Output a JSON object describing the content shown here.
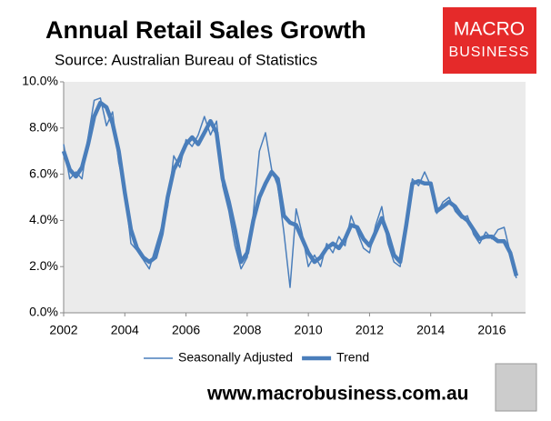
{
  "chart_data": {
    "type": "line",
    "title": "Annual Retail Sales Growth",
    "subtitle": "Source: Australian Bureau of Statistics",
    "logo": [
      "MACRO",
      "BUSINESS"
    ],
    "footer": "www.macrobusiness.com.au",
    "x": [
      2002,
      2002.2,
      2002.4,
      2002.6,
      2002.8,
      2003,
      2003.2,
      2003.4,
      2003.6,
      2003.8,
      2004,
      2004.2,
      2004.4,
      2004.6,
      2004.8,
      2005,
      2005.2,
      2005.4,
      2005.6,
      2005.8,
      2006,
      2006.2,
      2006.4,
      2006.6,
      2006.8,
      2007,
      2007.2,
      2007.4,
      2007.6,
      2007.8,
      2008,
      2008.2,
      2008.4,
      2008.6,
      2008.8,
      2009,
      2009.2,
      2009.4,
      2009.6,
      2009.8,
      2010,
      2010.2,
      2010.4,
      2010.6,
      2010.8,
      2011,
      2011.2,
      2011.4,
      2011.6,
      2011.8,
      2012,
      2012.2,
      2012.4,
      2012.6,
      2012.8,
      2013,
      2013.2,
      2013.4,
      2013.6,
      2013.8,
      2014,
      2014.2,
      2014.4,
      2014.6,
      2014.8,
      2015,
      2015.2,
      2015.4,
      2015.6,
      2015.8,
      2016,
      2016.2,
      2016.4,
      2016.6,
      2016.8
    ],
    "series": [
      {
        "name": "Seasonally Adjusted",
        "color": "#4a7ebb",
        "width": 1.5,
        "values": [
          7.3,
          5.8,
          6.1,
          5.8,
          7.6,
          9.2,
          9.3,
          8.1,
          8.7,
          6.5,
          5.3,
          3.0,
          2.7,
          2.3,
          1.9,
          2.8,
          3.7,
          4.6,
          6.8,
          6.3,
          7.5,
          7.2,
          7.7,
          8.5,
          7.7,
          8.3,
          5.5,
          4.4,
          2.9,
          1.9,
          2.4,
          4.3,
          7.0,
          7.8,
          6.2,
          5.5,
          3.5,
          1.1,
          4.5,
          3.4,
          2.0,
          2.5,
          2.0,
          3.0,
          2.6,
          3.3,
          2.9,
          4.2,
          3.5,
          2.8,
          2.6,
          3.8,
          4.6,
          3.0,
          2.2,
          2.0,
          4.1,
          5.8,
          5.5,
          6.1,
          5.5,
          4.3,
          4.8,
          5.0,
          4.4,
          4.1,
          4.2,
          3.4,
          3.0,
          3.5,
          3.2,
          3.6,
          3.7,
          2.6,
          1.5
        ]
      },
      {
        "name": "Trend",
        "color": "#4a7ebb",
        "width": 4.5,
        "values": [
          7.0,
          6.2,
          5.9,
          6.3,
          7.3,
          8.5,
          9.1,
          8.9,
          8.2,
          7.0,
          5.2,
          3.6,
          2.8,
          2.4,
          2.2,
          2.4,
          3.4,
          5.0,
          6.2,
          6.7,
          7.3,
          7.6,
          7.3,
          7.8,
          8.3,
          7.8,
          5.8,
          4.8,
          3.6,
          2.2,
          2.6,
          4.0,
          5.0,
          5.6,
          6.1,
          5.8,
          4.2,
          3.9,
          3.8,
          3.2,
          2.6,
          2.2,
          2.4,
          2.8,
          3.0,
          2.8,
          3.2,
          3.8,
          3.7,
          3.2,
          2.9,
          3.5,
          4.1,
          3.4,
          2.5,
          2.2,
          3.8,
          5.6,
          5.7,
          5.6,
          5.6,
          4.4,
          4.6,
          4.8,
          4.6,
          4.2,
          4.0,
          3.6,
          3.2,
          3.3,
          3.3,
          3.1,
          3.1,
          2.6,
          1.6
        ]
      }
    ],
    "xlim": [
      2002,
      2017.1
    ],
    "xticks": [
      2002,
      2004,
      2006,
      2008,
      2010,
      2012,
      2014,
      2016
    ],
    "ylim": [
      0,
      10
    ],
    "yticks": [
      {
        "value": 0,
        "label": "0.0%"
      },
      {
        "value": 2,
        "label": "2.0%"
      },
      {
        "value": 4,
        "label": "4.0%"
      },
      {
        "value": 6,
        "label": "6.0%"
      },
      {
        "value": 8,
        "label": "8.0%"
      },
      {
        "value": 10,
        "label": "10.0%"
      }
    ],
    "grid": false,
    "legend": "bottom",
    "plot_background": "#ebebeb"
  }
}
